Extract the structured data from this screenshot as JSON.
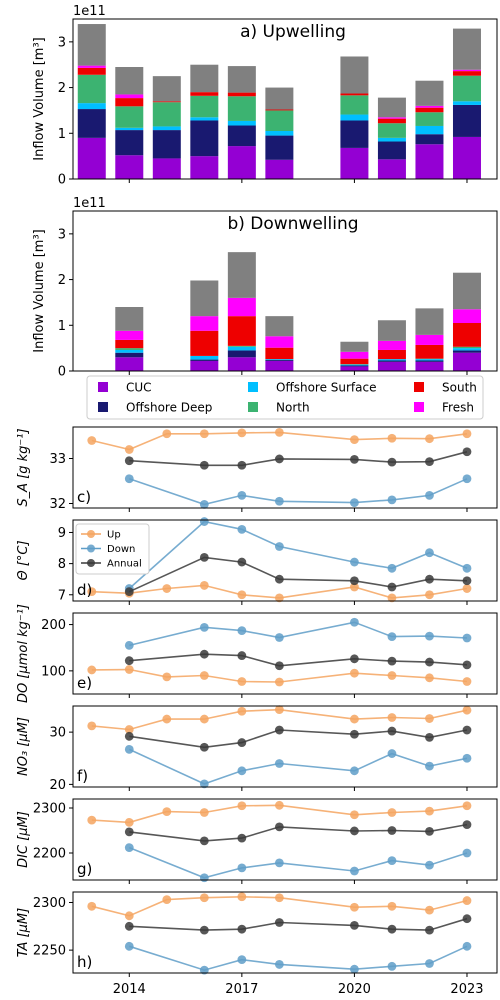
{
  "figure": {
    "years": [
      2013,
      2014,
      2015,
      2016,
      2017,
      2018,
      2020,
      2021,
      2022,
      2023
    ],
    "xticks": [
      2014,
      2017,
      2020,
      2023
    ],
    "xtick_labels": [
      "2014",
      "2017",
      "2020",
      "2023"
    ],
    "xlim": [
      2012.5,
      2023.8
    ]
  },
  "legend_bars": [
    {
      "name": "CUC",
      "color": "#9400d3"
    },
    {
      "name": "Offshore Deep",
      "color": "#191970"
    },
    {
      "name": "Offshore Surface",
      "color": "#00bfff"
    },
    {
      "name": "North",
      "color": "#3cb371"
    },
    {
      "name": "South",
      "color": "#ee0000"
    },
    {
      "name": "Fresh",
      "color": "#ff00ff"
    }
  ],
  "legend_lines": [
    {
      "name": "Up",
      "color": "#f4a460"
    },
    {
      "name": "Down",
      "color": "#5f9ec8"
    },
    {
      "name": "Annual",
      "color": "#3a3a3a"
    }
  ],
  "remainder_color": "#808080",
  "chart_data": [
    {
      "type": "bar",
      "stacked": true,
      "title": "a) Upwelling",
      "ylabel": "Inflow Volume [m³]",
      "offset_label": "1e11",
      "ylim": [
        0,
        3.5
      ],
      "yticks": [
        0,
        1,
        2,
        3
      ],
      "ytick_labels": [
        "0",
        "1",
        "2",
        "3"
      ],
      "x": [
        2013,
        2014,
        2015,
        2016,
        2017,
        2018,
        2020,
        2021,
        2022,
        2023
      ],
      "series": [
        {
          "name": "CUC",
          "values": [
            0.9,
            0.52,
            0.45,
            0.5,
            0.72,
            0.42,
            0.68,
            0.43,
            0.76,
            0.92
          ]
        },
        {
          "name": "Offshore Deep",
          "values": [
            0.63,
            0.55,
            0.62,
            0.78,
            0.45,
            0.53,
            0.6,
            0.39,
            0.22,
            0.7
          ]
        },
        {
          "name": "Offshore Surface",
          "values": [
            0.13,
            0.05,
            0.08,
            0.07,
            0.1,
            0.1,
            0.13,
            0.08,
            0.18,
            0.08
          ]
        },
        {
          "name": "North",
          "values": [
            0.62,
            0.47,
            0.53,
            0.47,
            0.54,
            0.45,
            0.42,
            0.32,
            0.3,
            0.56
          ]
        },
        {
          "name": "South",
          "values": [
            0.15,
            0.18,
            0.02,
            0.08,
            0.08,
            0.02,
            0.04,
            0.1,
            0.1,
            0.1
          ]
        },
        {
          "name": "Fresh",
          "values": [
            0.05,
            0.08,
            0.0,
            0.0,
            0.0,
            0.0,
            0.0,
            0.03,
            0.04,
            0.03
          ]
        },
        {
          "values": [
            0.91,
            0.6,
            0.55,
            0.6,
            0.58,
            0.48,
            0.81,
            0.43,
            0.55,
            0.9
          ]
        }
      ]
    },
    {
      "type": "bar",
      "stacked": true,
      "title": "b) Downwelling",
      "ylabel": "Inflow Volume [m³]",
      "offset_label": "1e11",
      "ylim": [
        0,
        3.5
      ],
      "yticks": [
        0,
        1,
        2,
        3
      ],
      "ytick_labels": [
        "0",
        "1",
        "2",
        "3"
      ],
      "x": [
        2013,
        2014,
        2015,
        2016,
        2017,
        2018,
        2020,
        2021,
        2022,
        2023
      ],
      "series": [
        {
          "name": "CUC",
          "values": [
            0,
            0.3,
            0,
            0.22,
            0.3,
            0.22,
            0.1,
            0.2,
            0.2,
            0.4
          ]
        },
        {
          "name": "Offshore Deep",
          "values": [
            0,
            0.1,
            0,
            0.03,
            0.15,
            0.02,
            0.02,
            0.03,
            0.03,
            0.05
          ]
        },
        {
          "name": "Offshore Surface",
          "values": [
            0,
            0.06,
            0,
            0.08,
            0.08,
            0.02,
            0.02,
            0.03,
            0.03,
            0.05
          ]
        },
        {
          "name": "North",
          "values": [
            0,
            0.04,
            0,
            0.0,
            0.02,
            0.0,
            0.01,
            0.0,
            0.01,
            0.03
          ]
        },
        {
          "name": "South",
          "values": [
            0,
            0.18,
            0,
            0.55,
            0.65,
            0.25,
            0.12,
            0.2,
            0.3,
            0.52
          ]
        },
        {
          "name": "Fresh",
          "values": [
            0,
            0.2,
            0,
            0.32,
            0.4,
            0.25,
            0.15,
            0.2,
            0.22,
            0.3
          ]
        },
        {
          "values": [
            0,
            0.52,
            0,
            0.78,
            1.0,
            0.44,
            0.22,
            0.45,
            0.58,
            0.8
          ]
        }
      ]
    },
    {
      "type": "line",
      "panel_label": "c)",
      "ylabel": "S_A [g kg⁻¹]",
      "ylim": [
        31.9,
        33.7
      ],
      "yticks": [
        32,
        33
      ],
      "ytick_labels": [
        "32",
        "33"
      ],
      "series": [
        {
          "name": "Up",
          "x": [
            2013,
            2014,
            2015,
            2016,
            2017,
            2018,
            2020,
            2021,
            2022,
            2023
          ],
          "values": [
            33.4,
            33.2,
            33.55,
            33.55,
            33.57,
            33.58,
            33.42,
            33.45,
            33.44,
            33.55
          ]
        },
        {
          "name": "Down",
          "x": [
            2014,
            2016,
            2017,
            2018,
            2020,
            2021,
            2022,
            2023
          ],
          "values": [
            32.55,
            31.98,
            32.18,
            32.05,
            32.02,
            32.08,
            32.18,
            32.55
          ]
        },
        {
          "name": "Annual",
          "x": [
            2014,
            2016,
            2017,
            2018,
            2020,
            2021,
            2022,
            2023
          ],
          "values": [
            32.95,
            32.85,
            32.85,
            32.99,
            32.98,
            32.92,
            32.93,
            33.15
          ]
        }
      ]
    },
    {
      "type": "line",
      "panel_label": "d)",
      "ylabel": "Θ [°C]",
      "legend": true,
      "ylim": [
        6.8,
        9.4
      ],
      "yticks": [
        7,
        8,
        9
      ],
      "ytick_labels": [
        "7",
        "8",
        "9"
      ],
      "series": [
        {
          "name": "Up",
          "x": [
            2013,
            2014,
            2015,
            2016,
            2017,
            2018,
            2020,
            2021,
            2022,
            2023
          ],
          "values": [
            7.1,
            7.05,
            7.2,
            7.3,
            7.0,
            6.9,
            7.25,
            6.9,
            7.0,
            7.2
          ]
        },
        {
          "name": "Down",
          "x": [
            2014,
            2016,
            2017,
            2018,
            2020,
            2021,
            2022,
            2023
          ],
          "values": [
            7.2,
            9.35,
            9.1,
            8.55,
            8.05,
            7.85,
            8.35,
            7.85
          ]
        },
        {
          "name": "Annual",
          "x": [
            2014,
            2016,
            2017,
            2018,
            2020,
            2021,
            2022,
            2023
          ],
          "values": [
            7.1,
            8.2,
            8.05,
            7.5,
            7.45,
            7.25,
            7.5,
            7.45
          ]
        }
      ]
    },
    {
      "type": "line",
      "panel_label": "e)",
      "ylabel": "DO [µmol kg⁻¹]",
      "ylim": [
        50,
        225
      ],
      "yticks": [
        100,
        200
      ],
      "ytick_labels": [
        "100",
        "200"
      ],
      "series": [
        {
          "name": "Up",
          "x": [
            2013,
            2014,
            2015,
            2016,
            2017,
            2018,
            2020,
            2021,
            2022,
            2023
          ],
          "values": [
            102,
            103,
            87,
            90,
            77,
            76,
            95,
            90,
            85,
            77
          ]
        },
        {
          "name": "Down",
          "x": [
            2014,
            2016,
            2017,
            2018,
            2020,
            2021,
            2022,
            2023
          ],
          "values": [
            155,
            194,
            187,
            172,
            205,
            174,
            175,
            171
          ]
        },
        {
          "name": "Annual",
          "x": [
            2014,
            2016,
            2017,
            2018,
            2020,
            2021,
            2022,
            2023
          ],
          "values": [
            122,
            136,
            133,
            111,
            126,
            121,
            119,
            113
          ]
        }
      ]
    },
    {
      "type": "line",
      "panel_label": "f)",
      "ylabel": "NO₃ [µM]",
      "ylim": [
        19.5,
        35
      ],
      "yticks": [
        20,
        30
      ],
      "ytick_labels": [
        "20",
        "30"
      ],
      "series": [
        {
          "name": "Up",
          "x": [
            2013,
            2014,
            2015,
            2016,
            2017,
            2018,
            2020,
            2021,
            2022,
            2023
          ],
          "values": [
            31.2,
            30.5,
            32.5,
            32.5,
            34.0,
            34.3,
            32.5,
            32.8,
            32.6,
            34.2
          ]
        },
        {
          "name": "Down",
          "x": [
            2014,
            2016,
            2017,
            2018,
            2020,
            2021,
            2022,
            2023
          ],
          "values": [
            26.7,
            20.1,
            22.6,
            24.0,
            22.6,
            25.9,
            23.5,
            25.0
          ]
        },
        {
          "name": "Annual",
          "x": [
            2014,
            2016,
            2017,
            2018,
            2020,
            2021,
            2022,
            2023
          ],
          "values": [
            29.2,
            27.1,
            28.0,
            30.4,
            29.6,
            30.2,
            29.0,
            30.4
          ]
        }
      ]
    },
    {
      "type": "line",
      "panel_label": "g)",
      "ylabel": "DIC [µM]",
      "ylim": [
        2140,
        2320
      ],
      "yticks": [
        2200,
        2300
      ],
      "ytick_labels": [
        "2200",
        "2300"
      ],
      "series": [
        {
          "name": "Up",
          "x": [
            2013,
            2014,
            2015,
            2016,
            2017,
            2018,
            2020,
            2021,
            2022,
            2023
          ],
          "values": [
            2273,
            2268,
            2292,
            2290,
            2305,
            2306,
            2285,
            2290,
            2293,
            2305
          ]
        },
        {
          "name": "Down",
          "x": [
            2014,
            2016,
            2017,
            2018,
            2020,
            2021,
            2022,
            2023
          ],
          "values": [
            2212,
            2145,
            2167,
            2178,
            2160,
            2183,
            2173,
            2200
          ]
        },
        {
          "name": "Annual",
          "x": [
            2014,
            2016,
            2017,
            2018,
            2020,
            2021,
            2022,
            2023
          ],
          "values": [
            2247,
            2227,
            2233,
            2258,
            2249,
            2250,
            2248,
            2263
          ]
        }
      ]
    },
    {
      "type": "line",
      "panel_label": "h)",
      "ylabel": "TA [µM]",
      "ylim": [
        2226,
        2311
      ],
      "yticks": [
        2250,
        2300
      ],
      "ytick_labels": [
        "2250",
        "2300"
      ],
      "series": [
        {
          "name": "Up",
          "x": [
            2013,
            2014,
            2015,
            2016,
            2017,
            2018,
            2020,
            2021,
            2022,
            2023
          ],
          "values": [
            2296,
            2286,
            2303,
            2305,
            2306,
            2305,
            2295,
            2296,
            2292,
            2302
          ]
        },
        {
          "name": "Down",
          "x": [
            2014,
            2016,
            2017,
            2018,
            2020,
            2021,
            2022,
            2023
          ],
          "values": [
            2254,
            2229,
            2240,
            2235,
            2230,
            2233,
            2236,
            2254
          ]
        },
        {
          "name": "Annual",
          "x": [
            2014,
            2016,
            2017,
            2018,
            2020,
            2021,
            2022,
            2023
          ],
          "values": [
            2275,
            2271,
            2272,
            2279,
            2276,
            2272,
            2271,
            2283
          ]
        }
      ]
    }
  ]
}
